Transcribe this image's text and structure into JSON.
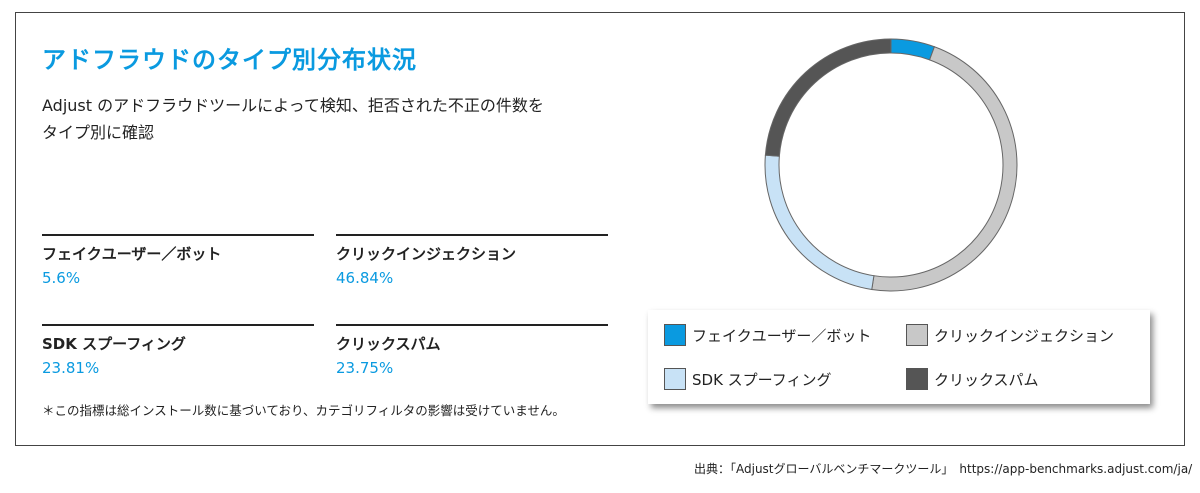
{
  "title": "アドフラウドのタイプ別分布状況",
  "subtitle_line1": "Adjust のアドフラウドツールによって検知、拒否された不正の件数を",
  "subtitle_line2": "タイプ別に確認",
  "note": "＊この指標は総インストール数に基づいており、カテゴリフィルタの影響は受けていません。",
  "source": "出典：「Adjustグローバルベンチマークツール」　https://app-benchmarks.adjust.com/ja/",
  "chart_data": {
    "type": "pie",
    "variant": "donut",
    "categories": [
      "フェイクユーザー／ボット",
      "クリックインジェクション",
      "SDK スプーフィング",
      "クリックスパム"
    ],
    "values": [
      5.6,
      46.84,
      23.81,
      23.75
    ],
    "value_labels": [
      "5.6%",
      "46.84%",
      "23.81%",
      "23.75%"
    ],
    "colors": [
      "#0a9ae0",
      "#c8c8c8",
      "#c8e2f6",
      "#555555"
    ],
    "legend_position": "bottom-right"
  }
}
